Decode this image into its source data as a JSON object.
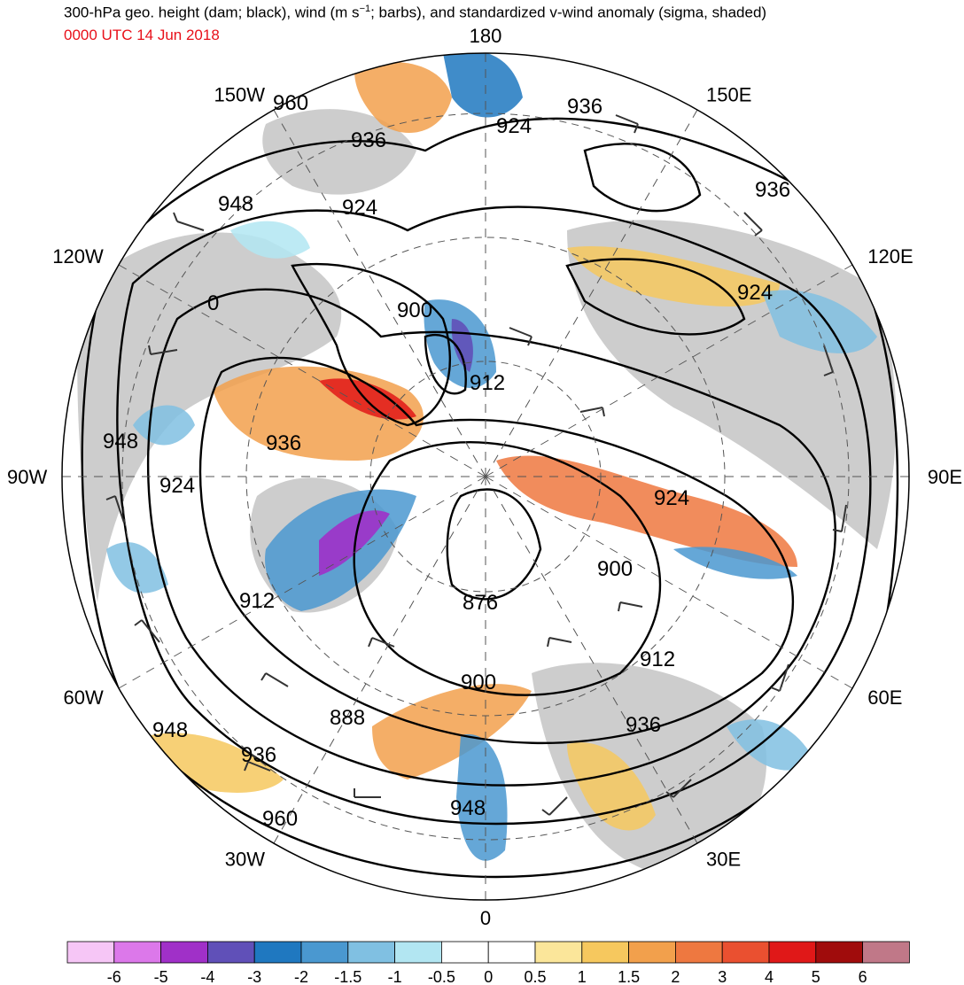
{
  "title": {
    "prefix": "300-hPa geo. height (dam; black), wind (m s",
    "sup": "−1",
    "suffix": "; barbs), and standardized v-wind anomaly (sigma, shaded)"
  },
  "valid_time": "0000 UTC 14 Jun 2018",
  "colors": {
    "subtitle": "#e8101a",
    "land": "#c8c8c8",
    "contour": "#000000"
  },
  "longitude_labels": [
    {
      "text": "180",
      "lon": 180
    },
    {
      "text": "150E",
      "lon": 150
    },
    {
      "text": "120E",
      "lon": 120
    },
    {
      "text": "90E",
      "lon": 90
    },
    {
      "text": "60E",
      "lon": 60
    },
    {
      "text": "30E",
      "lon": 30
    },
    {
      "text": "0",
      "lon": 0
    },
    {
      "text": "30W",
      "lon": -30
    },
    {
      "text": "60W",
      "lon": -60
    },
    {
      "text": "90W",
      "lon": -90
    },
    {
      "text": "120W",
      "lon": -120
    },
    {
      "text": "150W",
      "lon": -150
    }
  ],
  "height_contour_labels": [
    {
      "text": "960"
    },
    {
      "text": "936"
    },
    {
      "text": "924"
    },
    {
      "text": "936"
    },
    {
      "text": "948"
    },
    {
      "text": "924"
    },
    {
      "text": "900"
    },
    {
      "text": "912"
    },
    {
      "text": "924"
    },
    {
      "text": "936"
    },
    {
      "text": "948"
    },
    {
      "text": "936"
    },
    {
      "text": "924"
    },
    {
      "text": "924"
    },
    {
      "text": "900"
    },
    {
      "text": "912"
    },
    {
      "text": "876"
    },
    {
      "text": "912"
    },
    {
      "text": "900"
    },
    {
      "text": "888"
    },
    {
      "text": "936"
    },
    {
      "text": "948"
    },
    {
      "text": "936"
    },
    {
      "text": "960"
    },
    {
      "text": "948"
    },
    {
      "text": "0"
    }
  ],
  "colorbar": {
    "colors": [
      "#f6c6f6",
      "#dc78ea",
      "#a030c8",
      "#6050b8",
      "#1f78c0",
      "#4a98d0",
      "#80c0e2",
      "#b2e6f2",
      "#ffffff",
      "#ffffff",
      "#fbe69a",
      "#f6c85e",
      "#f2a04c",
      "#ee7840",
      "#ea5030",
      "#e01818",
      "#a00c0c",
      "#c07888"
    ],
    "labels": [
      "-6",
      "-5",
      "-4",
      "-3",
      "-2",
      "-1.5",
      "-1",
      "-0.5",
      "0",
      "0.5",
      "1",
      "1.5",
      "2",
      "3",
      "4",
      "5",
      "6"
    ]
  }
}
